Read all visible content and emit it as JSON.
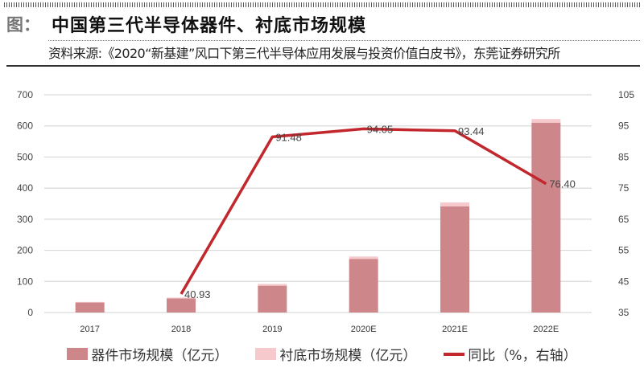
{
  "header": {
    "fig_label": "图：",
    "title": "中国第三代半导体器件、衬底市场规模",
    "source": "资料来源:《2020“新基建”风口下第三代半导体应用发展与投资价值白皮书》，东莞证券研究所"
  },
  "colors": {
    "device": "#cd878b",
    "substrate": "#f6c9cc",
    "line": "#c1272d",
    "grid": "#d9d9d9"
  },
  "legend": {
    "device": "器件市场规模（亿元）",
    "substrate": "衬底市场规模（亿元）",
    "line": "同比（%，右轴）"
  },
  "chart_data": {
    "type": "bar",
    "title": "中国第三代半导体器件、衬底市场规模",
    "categories": [
      "2017",
      "2018",
      "2019",
      "2020E",
      "2021E",
      "2022E"
    ],
    "series": [
      {
        "name": "器件市场规模（亿元）",
        "type": "bar",
        "stacked": true,
        "values": [
          32,
          45,
          86,
          172,
          341,
          610
        ]
      },
      {
        "name": "衬底市场规模（亿元）",
        "type": "bar",
        "stacked": true,
        "values": [
          2,
          3,
          6,
          8,
          13,
          12
        ]
      },
      {
        "name": "同比（%，右轴）",
        "type": "line",
        "axis": "right",
        "values": [
          null,
          40.93,
          91.48,
          94.05,
          93.44,
          76.4
        ]
      }
    ],
    "data_labels": [
      "",
      "40.93",
      "91.48",
      "94.05",
      "93.44",
      "76.40"
    ],
    "left_axis": {
      "ticks": [
        0,
        100,
        200,
        300,
        400,
        500,
        600,
        700
      ],
      "ylim": [
        0,
        700
      ]
    },
    "right_axis": {
      "ticks": [
        35,
        45,
        55,
        65,
        75,
        85,
        95,
        105
      ],
      "ylim": [
        35,
        105
      ]
    },
    "grid": true,
    "legend_position": "bottom"
  }
}
